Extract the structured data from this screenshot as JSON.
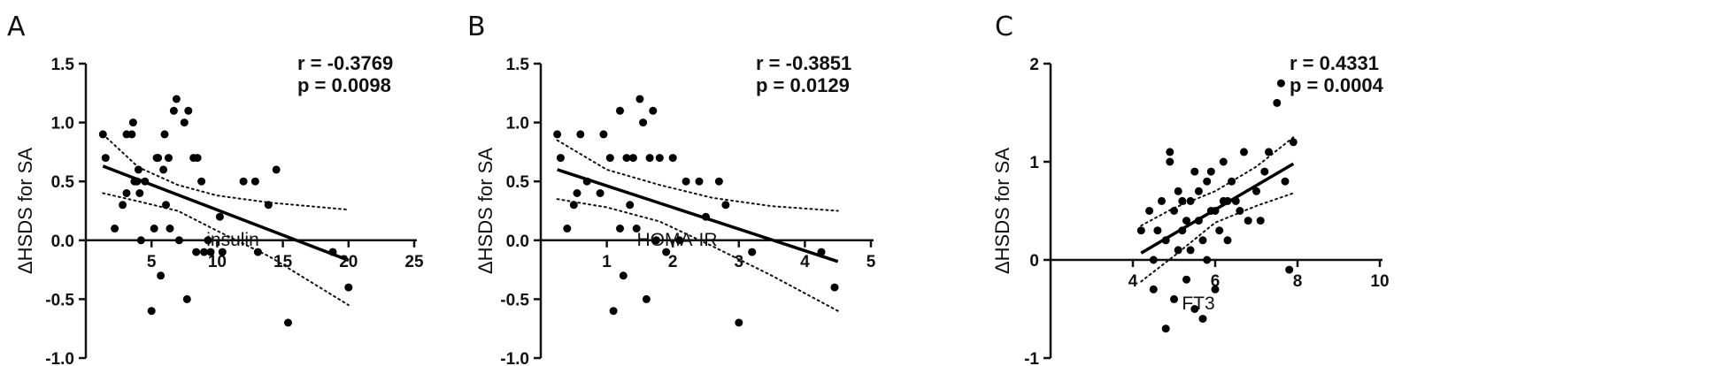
{
  "chart_data": [
    {
      "type": "scatter",
      "panel_label": "A",
      "xlabel": "insulin",
      "ylabel": "ΔHSDS for SA",
      "xlim": [
        0,
        25
      ],
      "ylim": [
        -1.0,
        1.5
      ],
      "xticks": [
        5,
        10,
        15,
        20,
        25
      ],
      "yticks": [
        -1.0,
        -0.5,
        0.0,
        0.5,
        1.0,
        1.5
      ],
      "ytick_labels": [
        "-1.0",
        "-0.5",
        "0.0",
        "0.5",
        "1.0",
        "1.5"
      ],
      "xtick_labels": [
        "5",
        "10",
        "15",
        "20",
        "25"
      ],
      "stats": [
        "r = -0.3769",
        "p = 0.0098"
      ],
      "fit_line": {
        "x": [
          1.3,
          20.0
        ],
        "y": [
          0.63,
          -0.17
        ]
      },
      "ci_upper": {
        "x": [
          1.3,
          4,
          7,
          10,
          14,
          20
        ],
        "y": [
          0.9,
          0.62,
          0.47,
          0.38,
          0.32,
          0.26
        ]
      },
      "ci_lower": {
        "x": [
          1.3,
          4,
          7,
          10,
          14,
          20
        ],
        "y": [
          0.4,
          0.33,
          0.25,
          0.08,
          -0.14,
          -0.55
        ]
      },
      "points": {
        "x": [
          1.3,
          1.5,
          2.2,
          2.8,
          3.1,
          3.1,
          3.5,
          3.6,
          3.7,
          3.9,
          4.0,
          4.1,
          4.2,
          4.5,
          5.0,
          5.2,
          5.4,
          5.5,
          5.7,
          5.9,
          6.0,
          6.1,
          6.3,
          6.4,
          6.7,
          6.9,
          7.1,
          7.5,
          7.7,
          7.8,
          8.2,
          8.4,
          8.5,
          8.8,
          9.0,
          9.3,
          9.5,
          10.2,
          10.4,
          12.0,
          12.9,
          13.1,
          13.9,
          14.5,
          15.4,
          18.8,
          20.0
        ],
        "y": [
          0.9,
          0.7,
          0.1,
          0.3,
          0.4,
          0.9,
          0.9,
          1.0,
          0.5,
          0.5,
          0.6,
          0.4,
          0.0,
          0.5,
          -0.6,
          0.1,
          0.7,
          0.7,
          -0.3,
          0.6,
          0.9,
          0.3,
          0.7,
          0.1,
          1.1,
          1.2,
          0.0,
          1.0,
          -0.5,
          1.1,
          0.7,
          -0.1,
          0.7,
          0.5,
          -0.1,
          0.0,
          -0.1,
          0.2,
          -0.1,
          0.5,
          0.5,
          -0.1,
          0.3,
          0.6,
          -0.7,
          -0.1,
          -0.4
        ]
      }
    },
    {
      "type": "scatter",
      "panel_label": "B",
      "xlabel": "HOMA-IR",
      "ylabel": "ΔHSDS for SA",
      "xlim": [
        0,
        5
      ],
      "ylim": [
        -1.0,
        1.5
      ],
      "xticks": [
        1,
        2,
        3,
        4,
        5
      ],
      "yticks": [
        -1.0,
        -0.5,
        0.0,
        0.5,
        1.0,
        1.5
      ],
      "ytick_labels": [
        "-1.0",
        "-0.5",
        "0.0",
        "0.5",
        "1.0",
        "1.5"
      ],
      "xtick_labels": [
        "1",
        "2",
        "3",
        "4",
        "5"
      ],
      "stats": [
        "r = -0.3851",
        "p = 0.0129"
      ],
      "fit_line": {
        "x": [
          0.25,
          4.5
        ],
        "y": [
          0.6,
          -0.18
        ]
      },
      "ci_upper": {
        "x": [
          0.25,
          1,
          1.8,
          2.6,
          3.5,
          4.5
        ],
        "y": [
          0.85,
          0.6,
          0.47,
          0.36,
          0.29,
          0.25
        ]
      },
      "ci_lower": {
        "x": [
          0.25,
          1,
          1.8,
          2.6,
          3.5,
          4.5
        ],
        "y": [
          0.35,
          0.28,
          0.16,
          -0.05,
          -0.3,
          -0.6
        ]
      },
      "points": {
        "x": [
          0.25,
          0.3,
          0.4,
          0.5,
          0.55,
          0.6,
          0.7,
          0.9,
          0.95,
          1.05,
          1.1,
          1.2,
          1.2,
          1.25,
          1.3,
          1.35,
          1.4,
          1.45,
          1.5,
          1.55,
          1.6,
          1.65,
          1.7,
          1.75,
          1.8,
          1.9,
          2.0,
          2.1,
          2.2,
          2.4,
          2.5,
          2.7,
          2.8,
          3.0,
          3.2,
          4.25,
          4.45
        ],
        "y": [
          0.9,
          0.7,
          0.1,
          0.3,
          0.4,
          0.9,
          0.5,
          0.4,
          0.9,
          0.7,
          -0.6,
          1.1,
          0.1,
          -0.3,
          0.7,
          0.3,
          0.7,
          0.1,
          1.2,
          1.0,
          -0.5,
          0.7,
          1.1,
          0.0,
          0.7,
          -0.1,
          0.7,
          0.0,
          0.5,
          0.5,
          0.2,
          0.5,
          0.3,
          -0.7,
          -0.1,
          -0.1,
          -0.4
        ]
      }
    },
    {
      "type": "scatter",
      "panel_label": "C",
      "xlabel": "FT3",
      "ylabel": "ΔHSDS for SA",
      "xlim": [
        2,
        10
      ],
      "ylim": [
        -1,
        2
      ],
      "xticks": [
        4,
        6,
        8,
        10
      ],
      "yticks": [
        -1,
        0,
        1,
        2
      ],
      "ytick_labels": [
        "-1",
        "0",
        "1",
        "2"
      ],
      "xtick_labels": [
        "4",
        "6",
        "8",
        "10"
      ],
      "stats": [
        "r = 0.4331",
        "p = 0.0004"
      ],
      "fit_line": {
        "x": [
          4.2,
          7.9
        ],
        "y": [
          0.07,
          0.98
        ]
      },
      "ci_upper": {
        "x": [
          4.2,
          5,
          6,
          7,
          7.9
        ],
        "y": [
          0.35,
          0.53,
          0.7,
          0.95,
          1.25
        ]
      },
      "ci_lower": {
        "x": [
          4.2,
          5,
          6,
          7,
          7.9
        ],
        "y": [
          -0.22,
          0.04,
          0.38,
          0.55,
          0.68
        ]
      },
      "points": {
        "x": [
          4.2,
          4.4,
          4.5,
          4.5,
          4.6,
          4.7,
          4.8,
          4.8,
          4.9,
          4.9,
          5.0,
          5.0,
          5.1,
          5.1,
          5.2,
          5.2,
          5.3,
          5.3,
          5.4,
          5.4,
          5.5,
          5.5,
          5.6,
          5.6,
          5.7,
          5.7,
          5.8,
          5.8,
          5.9,
          5.9,
          6.0,
          6.0,
          6.1,
          6.2,
          6.2,
          6.3,
          6.3,
          6.4,
          6.5,
          6.6,
          6.7,
          6.8,
          7.0,
          7.1,
          7.2,
          7.3,
          7.5,
          7.6,
          7.7,
          7.8,
          7.9
        ],
        "y": [
          0.3,
          0.5,
          0.0,
          -0.3,
          0.3,
          0.6,
          -0.7,
          0.2,
          1.1,
          1.0,
          -0.4,
          0.5,
          0.7,
          0.1,
          0.6,
          0.3,
          0.4,
          -0.2,
          0.6,
          0.1,
          0.9,
          -0.5,
          0.4,
          0.7,
          -0.6,
          0.2,
          0.8,
          0.0,
          0.9,
          0.5,
          0.5,
          -0.3,
          0.3,
          0.6,
          1.0,
          0.6,
          0.2,
          0.8,
          0.6,
          0.5,
          1.1,
          0.4,
          0.7,
          0.4,
          0.9,
          1.1,
          1.6,
          1.8,
          0.8,
          -0.1,
          1.2
        ]
      }
    }
  ]
}
